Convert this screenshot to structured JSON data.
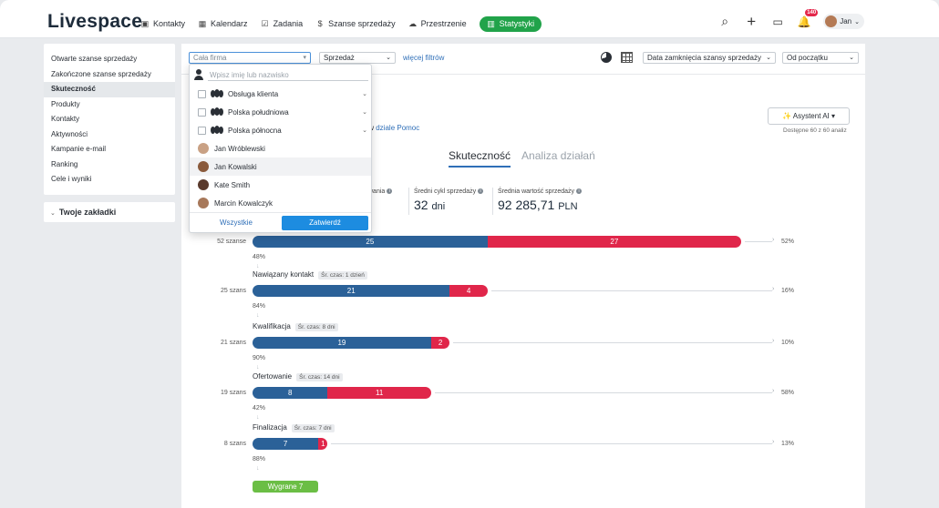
{
  "app": {
    "logo": "Livespace"
  },
  "nav": [
    {
      "label": "Kontakty",
      "icon": "contacts-icon",
      "glyph": "▣"
    },
    {
      "label": "Kalendarz",
      "icon": "calendar-icon",
      "glyph": "▦"
    },
    {
      "label": "Zadania",
      "icon": "tasks-icon",
      "glyph": "☑"
    },
    {
      "label": "Szanse sprzedaży",
      "icon": "dollar-icon",
      "glyph": "$"
    },
    {
      "label": "Przestrzenie",
      "icon": "cloud-icon",
      "glyph": "☁"
    },
    {
      "label": "Statystyki",
      "icon": "stats-icon",
      "glyph": "▥",
      "active": true
    }
  ],
  "topright": {
    "notifications_count": "140",
    "user_name": "Jan"
  },
  "sidebar": {
    "items": [
      {
        "label": "Otwarte szanse sprzedaży"
      },
      {
        "label": "Zakończone szanse sprzedaży"
      },
      {
        "label": "Skuteczność",
        "active": true
      },
      {
        "label": "Produkty"
      },
      {
        "label": "Kontakty"
      },
      {
        "label": "Aktywności"
      },
      {
        "label": "Kampanie e-mail"
      },
      {
        "label": "Ranking"
      },
      {
        "label": "Cele i wyniki"
      }
    ],
    "bookmarks": "Twoje zakładki"
  },
  "filters": {
    "company_placeholder": "Cała firma",
    "sales": "Sprzedaż",
    "more_filters": "więcej filtrów",
    "date_field": "Data zamknięcia szansy sprzedaży",
    "since": "Od początku"
  },
  "help": {
    "prefix": "z w ",
    "link": "dziale Pomoc"
  },
  "ai": {
    "button": "✨ Asystent AI ▾",
    "note": "Dostępne 60 z 60 analiz"
  },
  "tabs": [
    {
      "label": "Skuteczność",
      "active": true
    },
    {
      "label": "Analiza działań"
    }
  ],
  "kpis": [
    {
      "label": "wania",
      "value": ""
    },
    {
      "label": "Średni cykl sprzedaży",
      "value": "32",
      "unit": "dni"
    },
    {
      "label": "Średnia wartość sprzedaży",
      "value": "92 285,71",
      "unit": "PLN"
    }
  ],
  "funnel": {
    "top_fragment": "ni",
    "stages": [
      {
        "name": "",
        "time": "",
        "count": "52 szanse",
        "blue": 25,
        "red": 27,
        "right_pct": "52%",
        "conv_after": "48%"
      },
      {
        "name": "Nawiązany kontakt",
        "time": "Śr. czas: 1 dzień",
        "count": "25 szans",
        "blue": 21,
        "red": 4,
        "right_pct": "16%",
        "conv_after": "84%"
      },
      {
        "name": "Kwalifikacja",
        "time": "Śr. czas: 8 dni",
        "count": "21 szans",
        "blue": 19,
        "red": 2,
        "right_pct": "10%",
        "conv_after": "90%"
      },
      {
        "name": "Ofertowanie",
        "time": "Śr. czas: 14 dni",
        "count": "19 szans",
        "blue": 8,
        "red": 11,
        "right_pct": "58%",
        "conv_after": "42%"
      },
      {
        "name": "Finalizacja",
        "time": "Śr. czas: 7 dni",
        "count": "8 szans",
        "blue": 7,
        "red": 1,
        "right_pct": "13%",
        "conv_after": "88%"
      }
    ],
    "won": "Wygrane 7",
    "colors": {
      "won_blue": "#2b6198",
      "lost_red": "#e0264a",
      "won_green": "#6bbe45"
    }
  },
  "dropdown": {
    "search_placeholder": "Wpisz imię lub nazwisko",
    "groups": [
      {
        "label": "Obsługa klienta"
      },
      {
        "label": "Polska południowa"
      },
      {
        "label": "Polska północna"
      }
    ],
    "people": [
      {
        "label": "Jan Wróblewski",
        "color": "#c9a184"
      },
      {
        "label": "Jan Kowalski",
        "color": "#8a5a3c",
        "highlight": true
      },
      {
        "label": "Kate Smith",
        "color": "#5a3a2c"
      },
      {
        "label": "Marcin Kowalczyk",
        "color": "#a7785a"
      }
    ],
    "all_button": "Wszystkie",
    "confirm_button": "Zatwierdź"
  }
}
